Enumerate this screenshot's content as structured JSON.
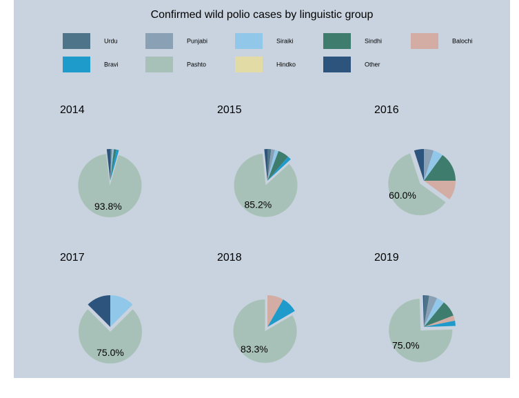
{
  "title": "Confirmed wild polio cases by linguistic group",
  "categories": [
    "Urdu",
    "Punjabi",
    "Siraiki",
    "Sindhi",
    "Balochi",
    "Bravi",
    "Pashto",
    "Hindko",
    "Other"
  ],
  "colors": [
    "#4e7489",
    "#8aa0b4",
    "#91c8ea",
    "#3e7d6e",
    "#d3aca3",
    "#1f9bcb",
    "#a8c1b8",
    "#e2dba6",
    "#2d547c"
  ],
  "chart_data": [
    {
      "type": "pie",
      "title": "2014",
      "values": [
        0.6,
        0.6,
        0.6,
        1.3,
        0,
        1.3,
        93.8,
        0,
        1.8
      ],
      "value_labels": [
        null,
        null,
        null,
        null,
        null,
        null,
        "93.8%",
        null,
        null
      ]
    },
    {
      "type": "pie",
      "title": "2015",
      "values": [
        1.9,
        1.9,
        1.9,
        5.6,
        0,
        1.9,
        85.2,
        0,
        1.6
      ],
      "value_labels": [
        null,
        null,
        null,
        null,
        null,
        null,
        "85.2%",
        null,
        null
      ]
    },
    {
      "type": "pie",
      "title": "2016",
      "values": [
        0,
        5,
        5,
        15,
        10,
        0,
        60,
        0,
        5
      ],
      "value_labels": [
        null,
        null,
        null,
        null,
        null,
        null,
        "60.0%",
        null,
        null
      ]
    },
    {
      "type": "pie",
      "title": "2017",
      "values": [
        0,
        0,
        12.5,
        0,
        0,
        0,
        75,
        0,
        12.5
      ],
      "value_labels": [
        null,
        null,
        null,
        null,
        null,
        null,
        "75.0%",
        null,
        null
      ]
    },
    {
      "type": "pie",
      "title": "2018",
      "values": [
        0,
        0,
        0,
        0,
        8.3,
        8.3,
        83.3,
        0,
        0
      ],
      "value_labels": [
        null,
        null,
        null,
        null,
        null,
        null,
        "83.3%",
        null,
        null
      ]
    },
    {
      "type": "pie",
      "title": "2019",
      "values": [
        2.7,
        4.1,
        4.1,
        8.2,
        2.7,
        2.7,
        75,
        0,
        0.5
      ],
      "value_labels": [
        null,
        null,
        null,
        null,
        null,
        null,
        "75.0%",
        null,
        null
      ]
    }
  ]
}
